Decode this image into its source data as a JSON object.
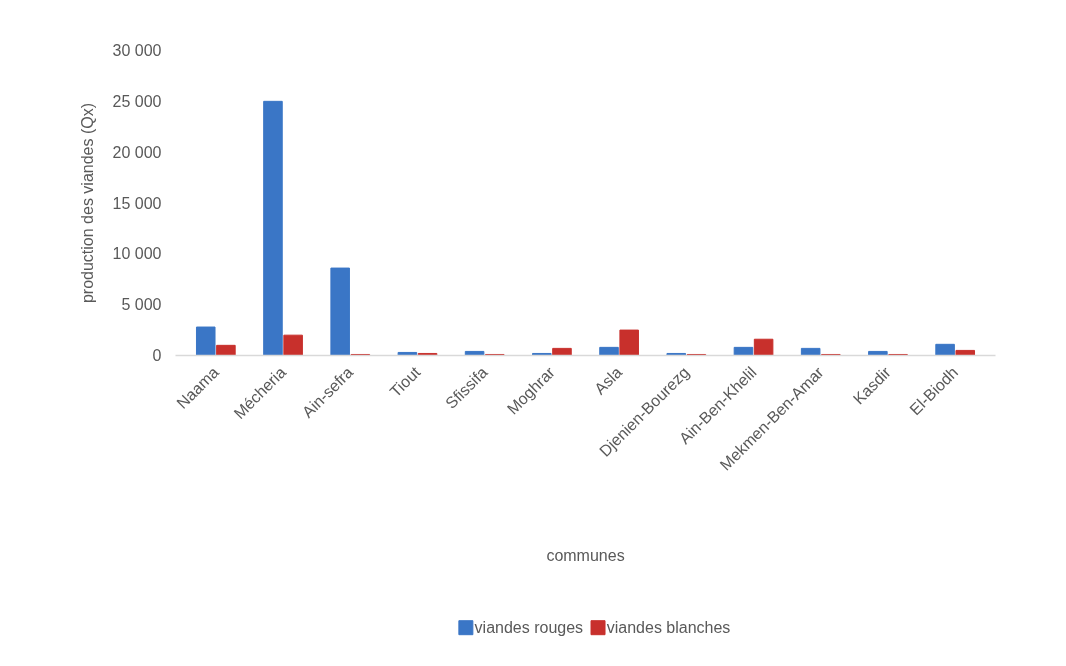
{
  "chart_data": {
    "type": "bar",
    "categories": [
      "Naama",
      "Mécheria",
      "Ain-sefra",
      "Tiout",
      "Sfissifa",
      "Moghrar",
      "Asla",
      "Djenien-Bourezg",
      "Ain-Ben-Khelil",
      "Mekmen-Ben-Amar",
      "Kasdir",
      "El-Biodh"
    ],
    "series": [
      {
        "name": "viandes rouges",
        "color": "#3a76c6",
        "values": [
          2800,
          25000,
          8600,
          300,
          400,
          200,
          800,
          200,
          800,
          700,
          400,
          1100
        ]
      },
      {
        "name": "viandes blanches",
        "color": "#c8302c",
        "values": [
          1000,
          2000,
          100,
          200,
          100,
          700,
          2500,
          100,
          1600,
          100,
          100,
          500
        ]
      }
    ],
    "xlabel": "communes",
    "ylabel": "production des viandes (Qx)",
    "ylim": [
      0,
      30000
    ],
    "yticks": [
      0,
      {
        "value": 5000,
        "label": "5 000"
      },
      {
        "value": 10000,
        "label": "10 000"
      },
      {
        "value": 15000,
        "label": "15 000"
      },
      {
        "value": 20000,
        "label": "20 000"
      },
      {
        "value": 25000,
        "label": "25 000"
      },
      {
        "value": 30000,
        "label": "30 000"
      }
    ],
    "grid": false,
    "legend": "bottom"
  }
}
